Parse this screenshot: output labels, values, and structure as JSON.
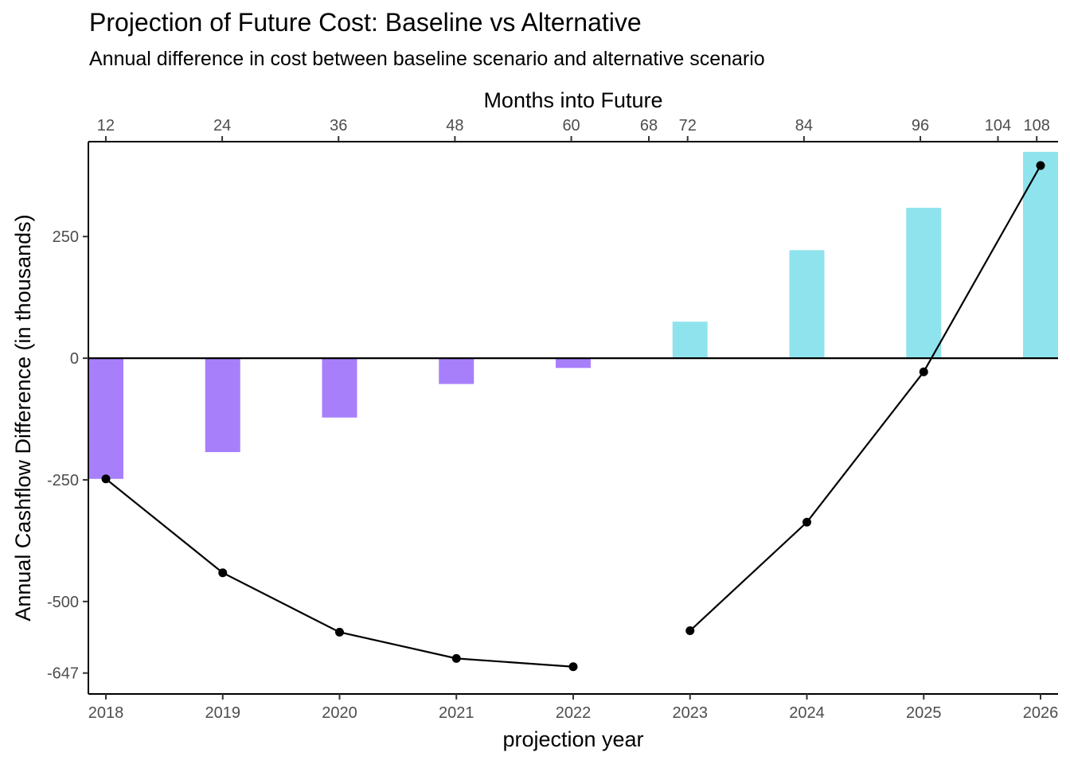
{
  "title": "Projection of Future Cost: Baseline vs Alternative",
  "subtitle": "Annual difference in cost between baseline scenario and alternative scenario",
  "colors": {
    "negative_bar": "#A87FFB",
    "positive_bar": "#8FE3EC",
    "line": "#000000"
  },
  "chart_data": {
    "type": "bar",
    "title": "Projection of Future Cost: Baseline vs Alternative",
    "subtitle": "Annual difference in cost between baseline scenario and alternative scenario",
    "xlabel": "projection year",
    "ylabel": "Annual Cashflow Difference (in thousands)",
    "x2label": "Months into Future",
    "categories": [
      "2018",
      "2019",
      "2020",
      "2021",
      "2022",
      "2023",
      "2024",
      "2025",
      "2026"
    ],
    "bar_values": [
      -248,
      -193,
      -122,
      -53,
      -20,
      75,
      222,
      309,
      424
    ],
    "line_segments": [
      {
        "x": [
          "2018",
          "2019",
          "2020",
          "2021",
          "2022"
        ],
        "values": [
          -248,
          -441,
          -563,
          -617,
          -634
        ]
      },
      {
        "x": [
          "2023",
          "2024",
          "2025",
          "2026"
        ],
        "values": [
          -560,
          -337,
          -28,
          396
        ]
      }
    ],
    "ylim": [
      -690,
      445
    ],
    "y_ticks": [
      250,
      0,
      -250,
      -500,
      -647
    ],
    "x2_ticks": [
      12,
      24,
      36,
      48,
      60,
      68,
      72,
      84,
      96,
      104,
      108
    ],
    "x2_range": [
      10.2,
      110.2
    ],
    "grid": false,
    "legend": "none"
  }
}
